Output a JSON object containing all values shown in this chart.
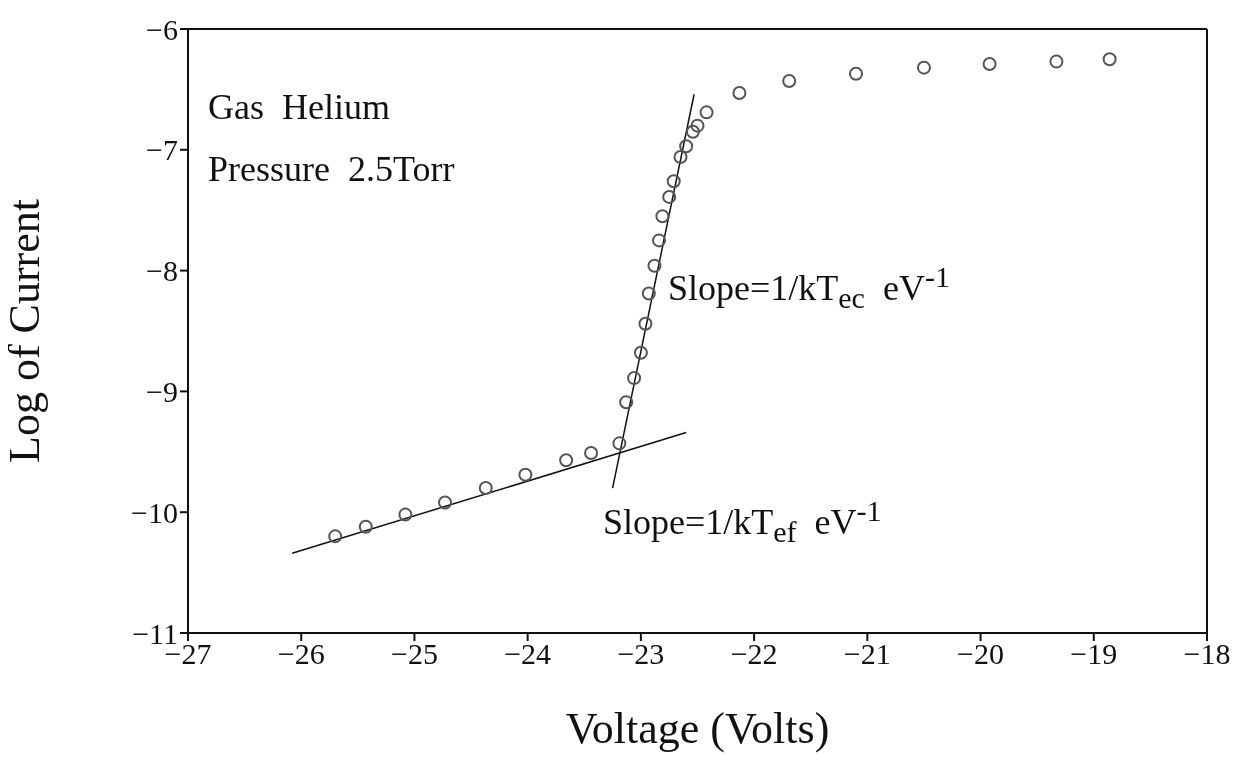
{
  "chart_data": {
    "type": "scatter",
    "xlabel": "Voltage (Volts)",
    "ylabel": "Log of Current",
    "xlim": [
      -27,
      -18
    ],
    "xticks": [
      -27,
      -26,
      -25,
      -24,
      -23,
      -22,
      -21,
      -20,
      -19,
      -18
    ],
    "ylim": [
      -11,
      -6
    ],
    "yticks": [
      -11,
      -10,
      -9,
      -8,
      -7,
      -6
    ],
    "marker": "circle",
    "series": [
      {
        "color": "#555555",
        "x": [
          -25.7,
          -25.43,
          -25.08,
          -24.73,
          -24.37,
          -24.02,
          -23.66,
          -23.44,
          -23.19,
          -23.13,
          -23.06,
          -23.0,
          -22.96,
          -22.93,
          -22.88,
          -22.84,
          -22.81,
          -22.75,
          -22.71,
          -22.65,
          -22.6,
          -22.54,
          -22.5,
          -22.42,
          -22.13,
          -21.69,
          -21.1,
          -20.5,
          -19.92,
          -19.33,
          -18.86
        ],
        "values": [
          -10.2,
          -10.12,
          -10.02,
          -9.92,
          -9.8,
          -9.69,
          -9.57,
          -9.51,
          -9.43,
          -9.09,
          -8.89,
          -8.68,
          -8.44,
          -8.19,
          -7.96,
          -7.75,
          -7.55,
          -7.39,
          -7.26,
          -7.06,
          -6.97,
          -6.85,
          -6.8,
          -6.69,
          -6.53,
          -6.43,
          -6.37,
          -6.32,
          -6.29,
          -6.27,
          -6.25
        ]
      },
      {
        "type": "line",
        "color": "#111111",
        "marker": "none",
        "line_style": "solid",
        "x": [
          -26.08,
          -22.6
        ],
        "values": [
          -10.34,
          -9.34
        ]
      },
      {
        "type": "line",
        "color": "#111111",
        "marker": "none",
        "line_style": "solid",
        "x": [
          -23.25,
          -22.53
        ],
        "values": [
          -9.8,
          -6.54
        ]
      }
    ],
    "annotations": [
      "Gas  Helium",
      "Pressure  2.5Torr",
      "Slope=1/kT$_{ec}$  eV$^{-1}$",
      "Slope=1/kT$_{ef}$  eV$^{-1}$"
    ]
  }
}
